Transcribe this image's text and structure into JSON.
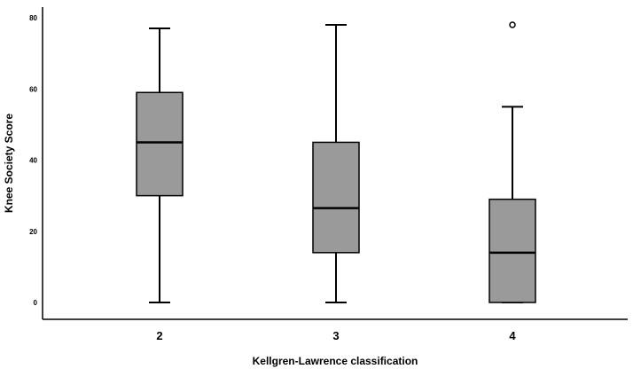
{
  "chart_data": {
    "type": "boxplot",
    "title": "",
    "xlabel": "Kellgren-Lawrence classification",
    "ylabel": "Knee Society Score",
    "ylim": [
      0,
      80
    ],
    "yticks": [
      "0",
      "20",
      "40",
      "60",
      "80"
    ],
    "categories": [
      "2",
      "3",
      "4"
    ],
    "boxes": [
      {
        "category": "2",
        "whisker_low": 0,
        "q1": 30,
        "median": 45,
        "q3": 59,
        "whisker_high": 77,
        "outliers": []
      },
      {
        "category": "3",
        "whisker_low": 0,
        "q1": 14,
        "median": 26.5,
        "q3": 45,
        "whisker_high": 78,
        "outliers": []
      },
      {
        "category": "4",
        "whisker_low": 0,
        "q1": 0,
        "median": 14,
        "q3": 29,
        "whisker_high": 55,
        "outliers": [
          78
        ]
      }
    ],
    "grid": false,
    "legend": "none",
    "box_fill": "#9a9a9a",
    "line_color": "#000000"
  }
}
